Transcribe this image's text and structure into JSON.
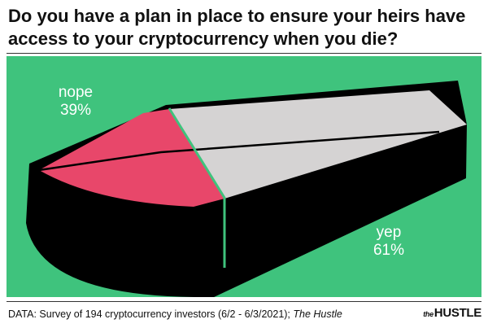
{
  "title": "Do you have a plan in place to ensure your heirs have access to your cryptocurrency when you die?",
  "footer": {
    "prefix": "DATA: Survey of 194 cryptocurrency investors (6/2 - 6/3/2021); ",
    "source": "The Hustle"
  },
  "brand": {
    "small": "the",
    "name": "HUSTLE"
  },
  "colors": {
    "background": "#3fc37d",
    "coffin": "#000000",
    "nope": "#e8476a",
    "yep": "#d5d3d3",
    "divider": "#3fc37d"
  },
  "chart_data": {
    "type": "pie",
    "title": "Do you have a plan in place to ensure your heirs have access to your cryptocurrency when you die?",
    "categories": [
      "nope",
      "yep"
    ],
    "values": [
      39,
      61
    ],
    "labels": [
      "39%",
      "61%"
    ]
  }
}
